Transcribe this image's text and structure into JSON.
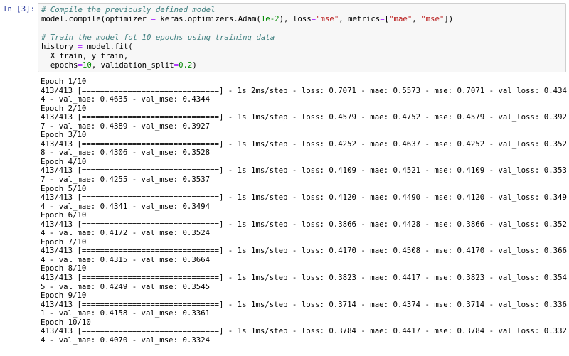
{
  "cell": {
    "prompt": "In [3]:",
    "code_lines": [
      [
        [
          "# Compile the previously defined model",
          "comment"
        ]
      ],
      [
        [
          "model.compile(optimizer ",
          ""
        ],
        [
          "=",
          "operator"
        ],
        [
          " keras.optimizers.Adam(",
          ""
        ],
        [
          "1e-2",
          "number"
        ],
        [
          "), loss",
          ""
        ],
        [
          "=",
          "operator"
        ],
        [
          "\"mse\"",
          "string"
        ],
        [
          ", metrics",
          ""
        ],
        [
          "=",
          "operator"
        ],
        [
          "[",
          ""
        ],
        [
          "\"mae\"",
          "string"
        ],
        [
          ", ",
          ""
        ],
        [
          "\"mse\"",
          "string"
        ],
        [
          "])",
          ""
        ]
      ],
      [],
      [
        [
          "# Train the model fot 10 epochs using training data",
          "comment"
        ]
      ],
      [
        [
          "history ",
          ""
        ],
        [
          "=",
          "operator"
        ],
        [
          " model.fit(",
          ""
        ]
      ],
      [
        [
          "  X_train, y_train,",
          ""
        ]
      ],
      [
        [
          "  epochs",
          ""
        ],
        [
          "=",
          "operator"
        ],
        [
          "10",
          "number"
        ],
        [
          ", validation_split",
          ""
        ],
        [
          "=",
          "operator"
        ],
        [
          "0.2",
          "number"
        ],
        [
          ")",
          ""
        ]
      ]
    ],
    "output_lines": [
      "Epoch 1/10",
      "413/413 [==============================] - 1s 2ms/step - loss: 0.7071 - mae: 0.5573 - mse: 0.7071 - val_loss: 0.434",
      "4 - val_mae: 0.4635 - val_mse: 0.4344",
      "Epoch 2/10",
      "413/413 [==============================] - 1s 1ms/step - loss: 0.4579 - mae: 0.4752 - mse: 0.4579 - val_loss: 0.392",
      "7 - val_mae: 0.4389 - val_mse: 0.3927",
      "Epoch 3/10",
      "413/413 [==============================] - 1s 1ms/step - loss: 0.4252 - mae: 0.4637 - mse: 0.4252 - val_loss: 0.352",
      "8 - val_mae: 0.4306 - val_mse: 0.3528",
      "Epoch 4/10",
      "413/413 [==============================] - 1s 1ms/step - loss: 0.4109 - mae: 0.4521 - mse: 0.4109 - val_loss: 0.353",
      "7 - val_mae: 0.4255 - val_mse: 0.3537",
      "Epoch 5/10",
      "413/413 [==============================] - 1s 1ms/step - loss: 0.4120 - mae: 0.4490 - mse: 0.4120 - val_loss: 0.349",
      "4 - val_mae: 0.4341 - val_mse: 0.3494",
      "Epoch 6/10",
      "413/413 [==============================] - 1s 1ms/step - loss: 0.3866 - mae: 0.4428 - mse: 0.3866 - val_loss: 0.352",
      "4 - val_mae: 0.4172 - val_mse: 0.3524",
      "Epoch 7/10",
      "413/413 [==============================] - 1s 1ms/step - loss: 0.4170 - mae: 0.4508 - mse: 0.4170 - val_loss: 0.366",
      "4 - val_mae: 0.4315 - val_mse: 0.3664",
      "Epoch 8/10",
      "413/413 [==============================] - 1s 1ms/step - loss: 0.3823 - mae: 0.4417 - mse: 0.3823 - val_loss: 0.354",
      "5 - val_mae: 0.4249 - val_mse: 0.3545",
      "Epoch 9/10",
      "413/413 [==============================] - 1s 1ms/step - loss: 0.3714 - mae: 0.4374 - mse: 0.3714 - val_loss: 0.336",
      "1 - val_mae: 0.4158 - val_mse: 0.3361",
      "Epoch 10/10",
      "413/413 [==============================] - 1s 1ms/step - loss: 0.3784 - mae: 0.4417 - mse: 0.3784 - val_loss: 0.332",
      "4 - val_mae: 0.4070 - val_mse: 0.3324"
    ]
  }
}
